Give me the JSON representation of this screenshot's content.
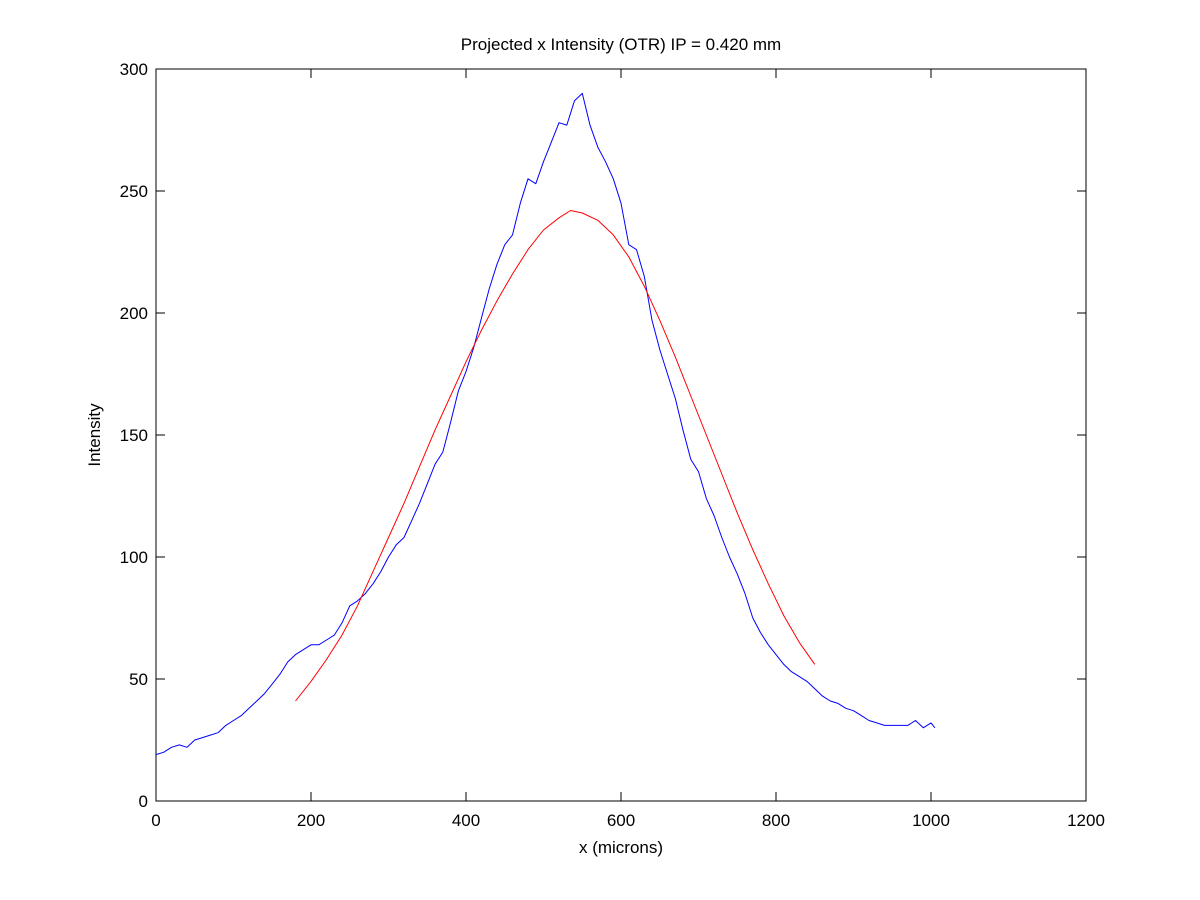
{
  "chart_data": {
    "type": "line",
    "title": "Projected x Intensity (OTR) IP = 0.420 mm",
    "xlabel": "x (microns)",
    "ylabel": "Intensity",
    "xlim": [
      0,
      1200
    ],
    "ylim": [
      0,
      300
    ],
    "xticks": [
      0,
      200,
      400,
      600,
      800,
      1000,
      1200
    ],
    "yticks": [
      0,
      50,
      100,
      150,
      200,
      250,
      300
    ],
    "xtick_labels": [
      "0",
      "200",
      "400",
      "600",
      "800",
      "1000",
      "1200"
    ],
    "ytick_labels": [
      "0",
      "50",
      "100",
      "150",
      "200",
      "250",
      "300"
    ],
    "grid": false,
    "legend": "none",
    "series": [
      {
        "color": "#0000ff",
        "x": [
          0,
          10,
          20,
          30,
          40,
          50,
          60,
          70,
          80,
          90,
          100,
          110,
          120,
          130,
          140,
          150,
          160,
          170,
          180,
          190,
          200,
          210,
          220,
          230,
          240,
          250,
          260,
          270,
          280,
          290,
          300,
          310,
          320,
          330,
          340,
          350,
          360,
          370,
          380,
          390,
          400,
          410,
          420,
          430,
          440,
          450,
          460,
          470,
          480,
          490,
          500,
          510,
          520,
          530,
          540,
          550,
          560,
          570,
          580,
          590,
          600,
          610,
          620,
          630,
          640,
          650,
          660,
          670,
          680,
          690,
          700,
          710,
          720,
          730,
          740,
          750,
          760,
          770,
          780,
          790,
          800,
          810,
          820,
          830,
          840,
          850,
          860,
          870,
          880,
          890,
          900,
          910,
          920,
          930,
          940,
          950,
          960,
          970,
          980,
          990,
          1000,
          1005
        ],
        "y": [
          19,
          20,
          22,
          23,
          22,
          25,
          26,
          27,
          28,
          31,
          33,
          35,
          38,
          41,
          44,
          48,
          52,
          57,
          60,
          62,
          64,
          64,
          66,
          68,
          73,
          80,
          82,
          85,
          89,
          94,
          100,
          105,
          108,
          115,
          122,
          130,
          138,
          143,
          155,
          168,
          176,
          186,
          198,
          210,
          220,
          228,
          232,
          245,
          255,
          253,
          262,
          270,
          278,
          277,
          287,
          290,
          277,
          268,
          262,
          255,
          245,
          228,
          226,
          215,
          197,
          185,
          175,
          165,
          152,
          140,
          135,
          124,
          117,
          108,
          100,
          93,
          85,
          75,
          69,
          64,
          60,
          56,
          53,
          51,
          49,
          46,
          43,
          41,
          40,
          38,
          37,
          35,
          33,
          32,
          31,
          31,
          31,
          31,
          33,
          30,
          32,
          30
        ]
      },
      {
        "color": "#ff0000",
        "x": [
          180,
          200,
          220,
          240,
          260,
          280,
          300,
          320,
          340,
          360,
          380,
          400,
          420,
          440,
          460,
          480,
          500,
          520,
          535,
          550,
          570,
          590,
          610,
          630,
          650,
          670,
          690,
          710,
          730,
          750,
          770,
          790,
          810,
          830,
          850
        ],
        "y": [
          41,
          49,
          58,
          68,
          80,
          94,
          108,
          122,
          137,
          152,
          166,
          180,
          193,
          205,
          216,
          226,
          234,
          239,
          242,
          241,
          238,
          232,
          223,
          211,
          197,
          182,
          166,
          150,
          134,
          118,
          103,
          89,
          76,
          65,
          56
        ]
      }
    ]
  }
}
